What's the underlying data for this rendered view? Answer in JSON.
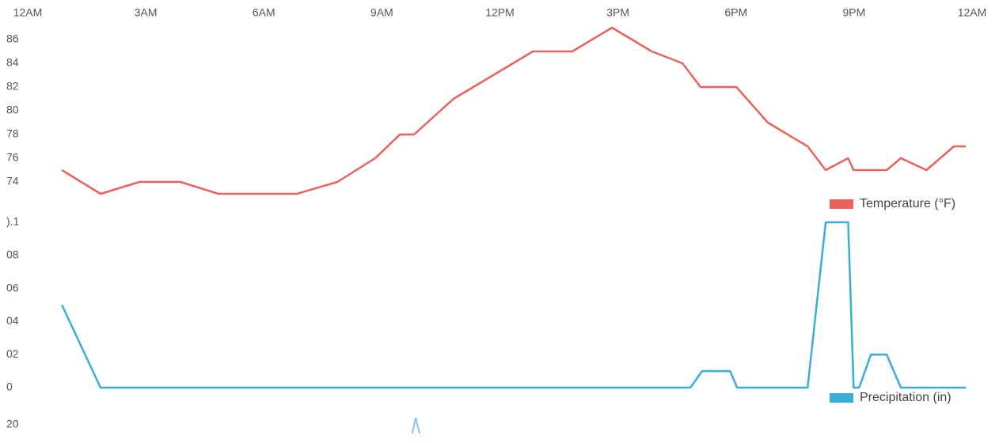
{
  "chart_data": [
    {
      "type": "line",
      "xlim": [
        0,
        24
      ],
      "xticks": [
        {
          "value": 0,
          "label": "12AM"
        },
        {
          "value": 3,
          "label": "3AM"
        },
        {
          "value": 6,
          "label": "6AM"
        },
        {
          "value": 9,
          "label": "9AM"
        },
        {
          "value": 12,
          "label": "12PM"
        },
        {
          "value": 15,
          "label": "3PM"
        },
        {
          "value": 18,
          "label": "6PM"
        },
        {
          "value": 21,
          "label": "9PM"
        },
        {
          "value": 24,
          "label": "12AM"
        }
      ],
      "ylim": [
        73,
        87
      ],
      "yticks": [
        74,
        76,
        78,
        80,
        82,
        84,
        86
      ],
      "legend": "bottom-right",
      "x": [
        0.87,
        1.85,
        2.84,
        3.88,
        4.85,
        6.84,
        7.87,
        8.83,
        9.46,
        9.82,
        10.82,
        11.83,
        12.84,
        13.84,
        14.85,
        15.86,
        16.64,
        17.1,
        18.01,
        18.81,
        19.82,
        20.28,
        20.85,
        20.99,
        21.83,
        22.19,
        22.84,
        23.54,
        23.84
      ],
      "series": [
        {
          "name": "Temperature (°F)",
          "color": "#e8625e",
          "values": [
            75,
            73,
            74,
            74,
            73,
            73,
            74,
            76,
            78,
            78,
            81,
            83,
            85,
            85,
            87,
            85,
            84,
            82,
            82,
            79,
            77,
            75,
            76,
            75,
            75,
            76,
            75,
            77,
            77
          ]
        }
      ]
    },
    {
      "type": "line",
      "xlim": [
        0,
        24
      ],
      "ylim": [
        0,
        0.1
      ],
      "yticks": [
        {
          "value": 0.1,
          "label": ").1"
        },
        {
          "value": 0.08,
          "label": "08"
        },
        {
          "value": 0.06,
          "label": "06"
        },
        {
          "value": 0.04,
          "label": "04"
        },
        {
          "value": 0.02,
          "label": "02"
        },
        0
      ],
      "legend": "bottom-right",
      "x": [
        0.87,
        1.85,
        16.84,
        17.14,
        17.85,
        18.03,
        19.82,
        20.28,
        20.85,
        20.99,
        21.13,
        21.43,
        21.83,
        22.19,
        23.84
      ],
      "series": [
        {
          "name": "Precipitation (in)",
          "color": "#3aaed8",
          "values": [
            0.05,
            0,
            0,
            0.01,
            0.01,
            0,
            0,
            0.1,
            0.1,
            0,
            0,
            0.02,
            0.02,
            0,
            0
          ]
        }
      ]
    },
    {
      "type": "line",
      "yticks": [
        20
      ]
    }
  ]
}
